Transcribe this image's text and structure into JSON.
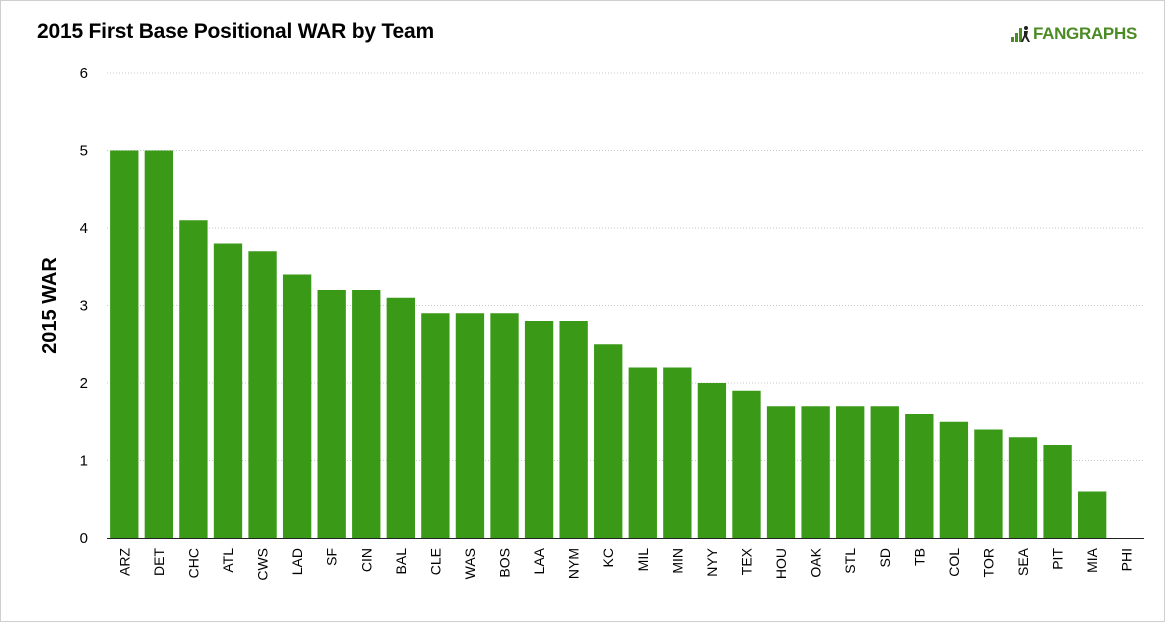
{
  "title": "2015 First Base Positional WAR by Team",
  "brand": {
    "name": "FANGRAPHS",
    "icon": "fangraphs-logo-icon",
    "color": "#4a8b24"
  },
  "chart_data": {
    "type": "bar",
    "title": "2015 First Base Positional WAR by Team",
    "xlabel": "",
    "ylabel": "2015 WAR",
    "ylim": [
      0,
      6
    ],
    "yticks": [
      0,
      1,
      2,
      3,
      4,
      5,
      6
    ],
    "grid": true,
    "bar_color": "#3a9a17",
    "categories": [
      "ARZ",
      "DET",
      "CHC",
      "ATL",
      "CWS",
      "LAD",
      "SF",
      "CIN",
      "BAL",
      "CLE",
      "WAS",
      "BOS",
      "LAA",
      "NYM",
      "KC",
      "MIL",
      "MIN",
      "NYY",
      "TEX",
      "HOU",
      "OAK",
      "STL",
      "SD",
      "TB",
      "COL",
      "TOR",
      "SEA",
      "PIT",
      "MIA",
      "PHI"
    ],
    "values": [
      5.0,
      5.0,
      4.1,
      3.8,
      3.7,
      3.4,
      3.2,
      3.2,
      3.1,
      2.9,
      2.9,
      2.9,
      2.8,
      2.8,
      2.5,
      2.2,
      2.2,
      2.0,
      1.9,
      1.7,
      1.7,
      1.7,
      1.7,
      1.6,
      1.5,
      1.4,
      1.3,
      1.2,
      0.6,
      0.0
    ]
  }
}
